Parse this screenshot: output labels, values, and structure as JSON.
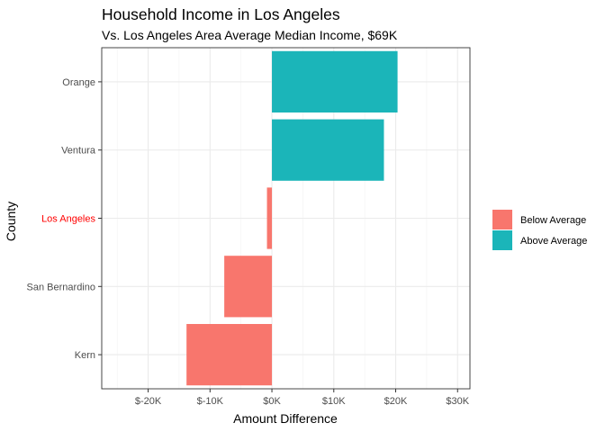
{
  "chart_data": {
    "type": "bar",
    "orientation": "horizontal",
    "title": "Household Income in Los Angeles",
    "subtitle": "Vs. Los Angeles Area Average Median Income, $69K",
    "xlabel": "Amount Difference",
    "ylabel": "County",
    "categories": [
      "Orange",
      "Ventura",
      "Los Angeles",
      "San Bernardino",
      "Kern"
    ],
    "highlight_category": "Los Angeles",
    "values": [
      20300,
      18100,
      -800,
      -7700,
      -13800
    ],
    "xlim": [
      -27500,
      32000
    ],
    "x_ticks": [
      -20000,
      -10000,
      0,
      10000,
      20000,
      30000
    ],
    "x_tick_labels": [
      "$-20K",
      "$-10K",
      "$0K",
      "$10K",
      "$20K",
      "$30K"
    ],
    "grid": true,
    "legend": {
      "placement": "right",
      "items": [
        {
          "label": "Below Average",
          "color": "#F8766D"
        },
        {
          "label": "Above Average",
          "color": "#00BFC4"
        }
      ]
    },
    "colors": {
      "below": "#F8766D",
      "above": "#1BB5B9",
      "highlight_label": "#FF0000"
    }
  }
}
